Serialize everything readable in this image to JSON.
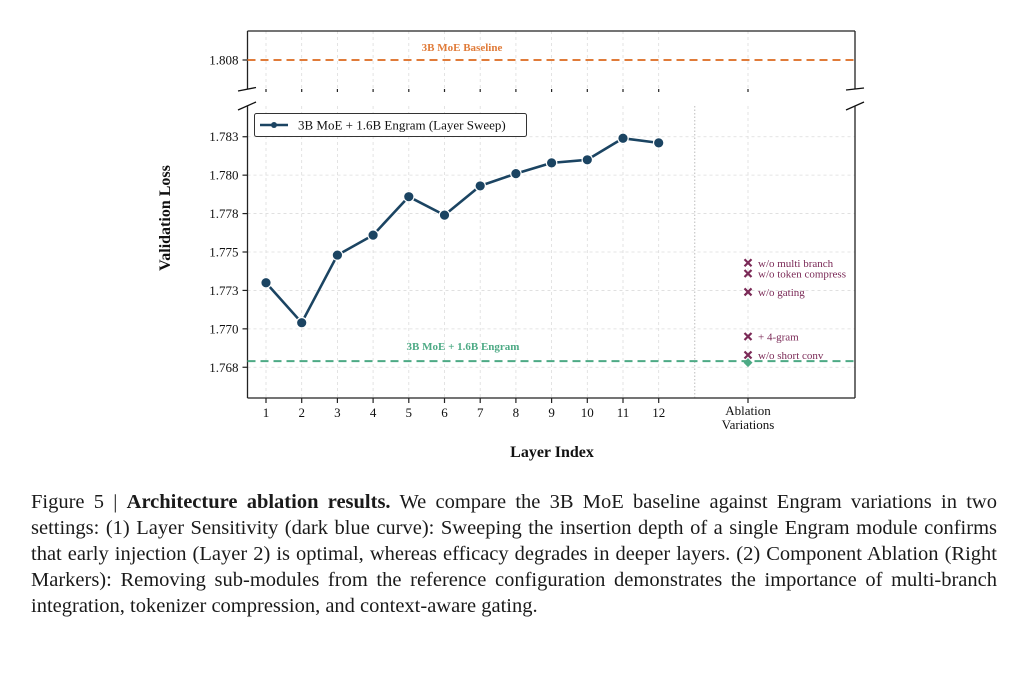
{
  "chart_data": {
    "type": "line",
    "ylabel": "Validation Loss",
    "xlabel": "Layer Index",
    "broken_axis": true,
    "top_panel": {
      "yticks": [
        1.808
      ],
      "ytick_labels": [
        "1.808"
      ],
      "ylim": [
        1.8055,
        1.8105
      ]
    },
    "bottom_panel": {
      "yticks": [
        1.7675,
        1.77,
        1.7725,
        1.775,
        1.7775,
        1.78,
        1.7825
      ],
      "ytick_labels": [
        "1.768",
        "1.770",
        "1.773",
        "1.775",
        "1.778",
        "1.780",
        "1.783"
      ],
      "ylim": [
        1.7655,
        1.7845
      ]
    },
    "x": [
      1,
      2,
      3,
      4,
      5,
      6,
      7,
      8,
      9,
      10,
      11,
      12
    ],
    "xtick_labels": [
      "1",
      "2",
      "3",
      "4",
      "5",
      "6",
      "7",
      "8",
      "9",
      "10",
      "11",
      "12"
    ],
    "ablation_tick_label": [
      "Ablation",
      "Variations"
    ],
    "grid": true,
    "legend_position": "top-left",
    "series": [
      {
        "name": "3B MoE + 1.6B Engram (Layer Sweep)",
        "color": "#1b4462",
        "marker": "circle",
        "values": [
          1.773,
          1.7704,
          1.7748,
          1.7761,
          1.7786,
          1.7774,
          1.7793,
          1.7801,
          1.7808,
          1.781,
          1.7824,
          1.7821
        ]
      }
    ],
    "reference_lines": [
      {
        "name": "3B MoE Baseline",
        "value": 1.808,
        "color": "#e07b39",
        "style": "dashed"
      },
      {
        "name": "3B MoE + 1.6B Engram",
        "value": 1.7679,
        "color": "#4daa85",
        "style": "dashed"
      }
    ],
    "ablations": {
      "color": "#7b2a57",
      "marker": "x",
      "reference_marker": {
        "name": "3B MoE + 1.6B Engram",
        "value": 1.7678,
        "marker": "diamond",
        "color": "#4daa85"
      },
      "points": [
        {
          "label": "w/o multi branch",
          "value": 1.7743
        },
        {
          "label": "w/o token compress",
          "value": 1.7736
        },
        {
          "label": "w/o gating",
          "value": 1.7724
        },
        {
          "label": "+ 4-gram",
          "value": 1.7695
        },
        {
          "label": "w/o short conv",
          "value": 1.7683
        }
      ]
    }
  },
  "caption": {
    "prefix": "Figure 5 | ",
    "title": "Architecture ablation results.",
    "body": " We compare the 3B MoE baseline against Engram variations in two settings: (1) Layer Sensitivity (dark blue curve): Sweeping the insertion depth of a single Engram module confirms that early injection (Layer 2) is optimal, whereas efficacy degrades in deeper layers. (2) Component Ablation (Right Markers): Removing sub-modules from the reference configuration demonstrates the importance of multi-branch integration, tokenizer compression, and context-aware gating."
  }
}
